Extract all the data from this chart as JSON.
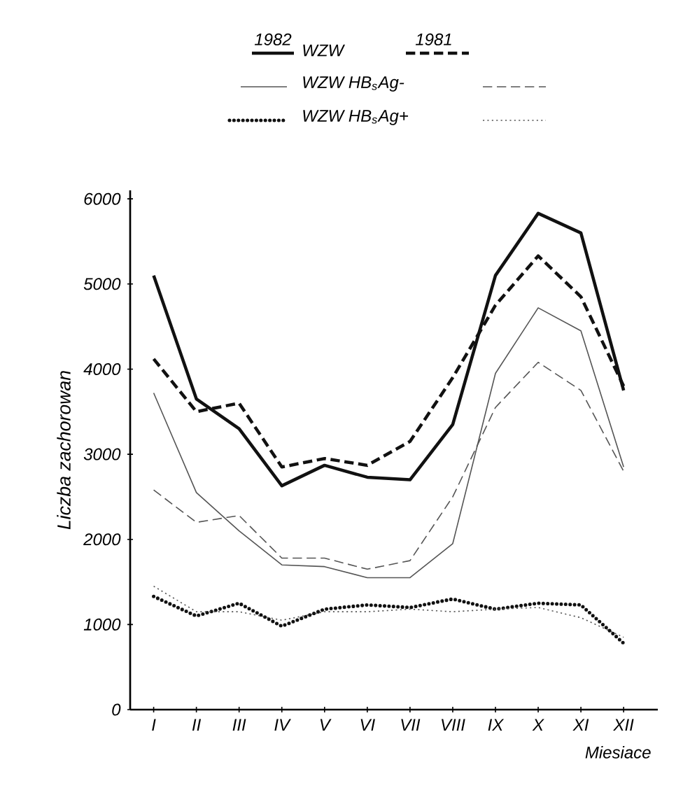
{
  "chart_data": {
    "type": "line",
    "xlabel": "Miesiace",
    "ylabel": "Liczba zachorowan",
    "categories": [
      "I",
      "II",
      "III",
      "IV",
      "V",
      "VI",
      "VII",
      "VIII",
      "IX",
      "X",
      "XI",
      "XII"
    ],
    "series": [
      {
        "name": "WZW",
        "color": "#111111",
        "line_style": "solid",
        "values": [
          5100,
          3650,
          3300,
          2630,
          2870,
          2730,
          2700,
          3350,
          5100,
          5830,
          5600,
          3750
        ]
      },
      {
        "color": "#111111",
        "line_style": "dashed",
        "values": [
          4120,
          3500,
          3600,
          2850,
          2950,
          2870,
          3150,
          3900,
          4750,
          5330,
          4850,
          3800
        ]
      },
      {
        "name": "WZW HB$_{s}$Ag-",
        "color": "#555555",
        "line_style": "solid",
        "values": [
          3720,
          2550,
          2100,
          1700,
          1680,
          1550,
          1550,
          1950,
          3950,
          4720,
          4450,
          2850
        ]
      },
      {
        "color": "#555555",
        "line_style": "dashed",
        "values": [
          2580,
          2200,
          2280,
          1780,
          1780,
          1650,
          1750,
          2500,
          3550,
          4080,
          3750,
          2800
        ]
      },
      {
        "name": "WZW HB$_{s}$Ag+",
        "color": "#111111",
        "line_style": "dotted",
        "values": [
          1330,
          1100,
          1250,
          980,
          1180,
          1230,
          1200,
          1300,
          1180,
          1250,
          1230,
          780
        ]
      },
      {
        "color": "#555555",
        "line_style": "dotted",
        "values": [
          1450,
          1150,
          1150,
          1050,
          1150,
          1150,
          1180,
          1150,
          1180,
          1200,
          1080,
          850
        ]
      }
    ],
    "annotations": [
      "1982",
      "1981"
    ],
    "ylim": [
      0,
      6100
    ],
    "yticks": [
      0,
      1000,
      2000,
      3000,
      4000,
      5000,
      6000
    ],
    "grid": false,
    "legend": "top"
  }
}
